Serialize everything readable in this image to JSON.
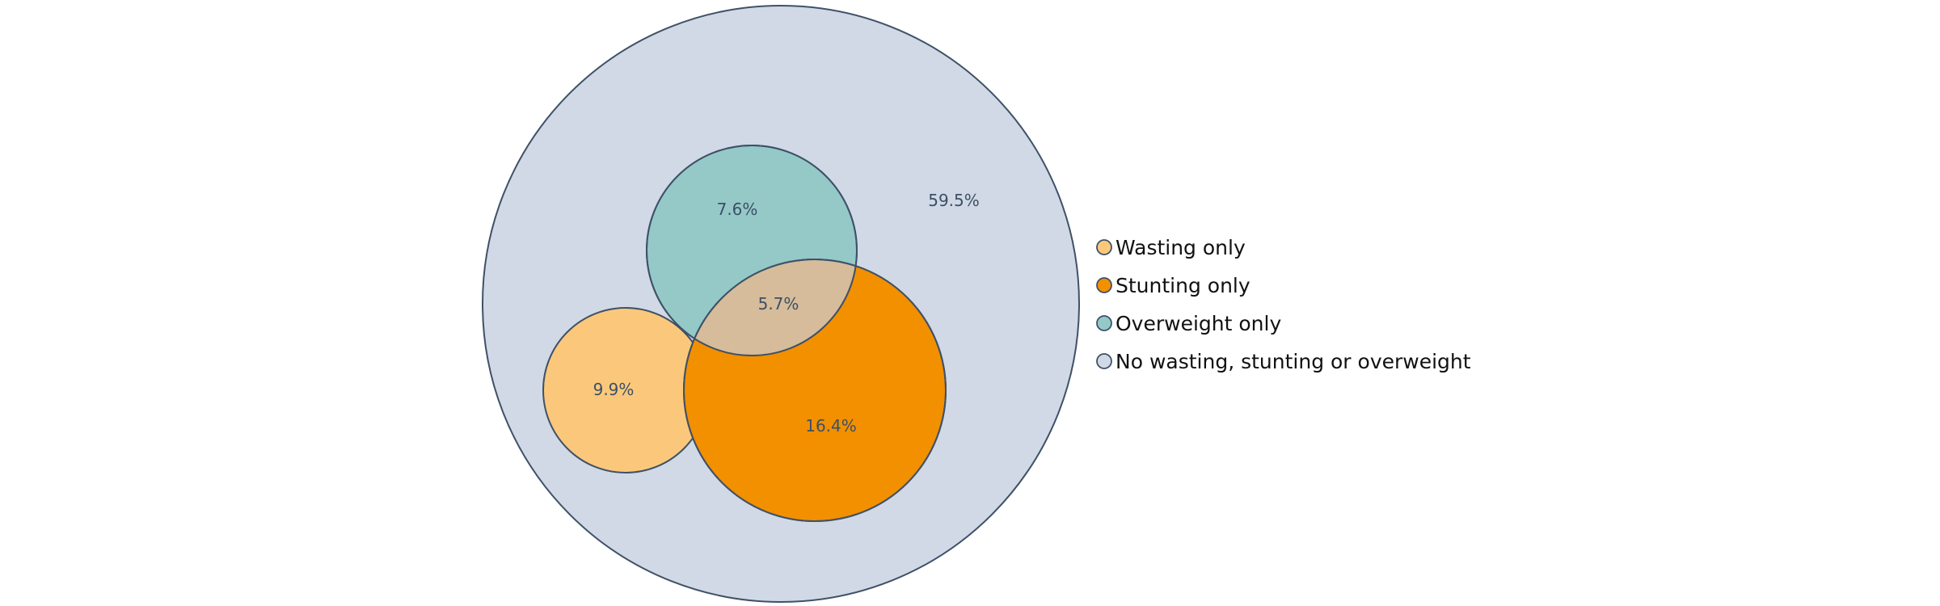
{
  "diagram": {
    "type": "venn",
    "outline_color": "#3f5168",
    "label_color": "#3d4f66",
    "sets": [
      {
        "key": "none",
        "name": "No wasting, stunting or overweight",
        "value_label": "59.5%",
        "color": "#d0d9e5"
      },
      {
        "key": "overweight",
        "name": "Overweight only",
        "value_label": "7.6%",
        "color": "#94c9c8"
      },
      {
        "key": "stunting",
        "name": "Stunting only",
        "value_label": "16.4%",
        "color": "#f29000"
      },
      {
        "key": "wasting",
        "name": "Wasting only",
        "value_label": "9.9%",
        "color": "#fbc87b"
      }
    ],
    "overlaps": [
      {
        "sets": [
          "overweight",
          "stunting"
        ],
        "value_label": "5.7%",
        "color": "#d6bc9a"
      }
    ]
  },
  "legend": {
    "items": [
      {
        "label": "Wasting only",
        "color": "#fbc87b"
      },
      {
        "label": "Stunting only",
        "color": "#f29000"
      },
      {
        "label": "Overweight only",
        "color": "#94c9c8"
      },
      {
        "label": "No wasting, stunting or overweight",
        "color": "#d0d9e5"
      }
    ]
  }
}
